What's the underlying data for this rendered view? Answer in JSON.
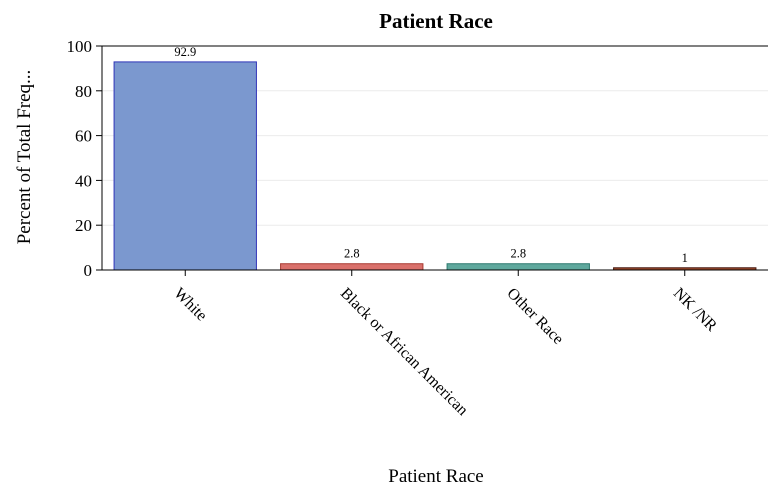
{
  "chart_data": {
    "type": "bar",
    "title": "Patient Race",
    "xlabel": "Patient Race",
    "ylabel": "Percent of Total Freq...",
    "categories": [
      "White",
      "Black or African American",
      "Other Race",
      "NK /NR"
    ],
    "values": [
      92.9,
      2.8,
      2.8,
      1
    ],
    "data_labels": [
      "92.9",
      "2.8",
      "2.8",
      "1"
    ],
    "bar_colors": [
      "#7b98cf",
      "#d9706b",
      "#5fa89d",
      "#9b4a2d"
    ],
    "bar_edge_colors": [
      "#2f34b8",
      "#a83a32",
      "#2e7a6f",
      "#4a1a10"
    ],
    "ylim": [
      0,
      100
    ],
    "yticks": [
      "0",
      "20",
      "40",
      "60",
      "80",
      "100"
    ],
    "grid": true,
    "legend": "none"
  }
}
